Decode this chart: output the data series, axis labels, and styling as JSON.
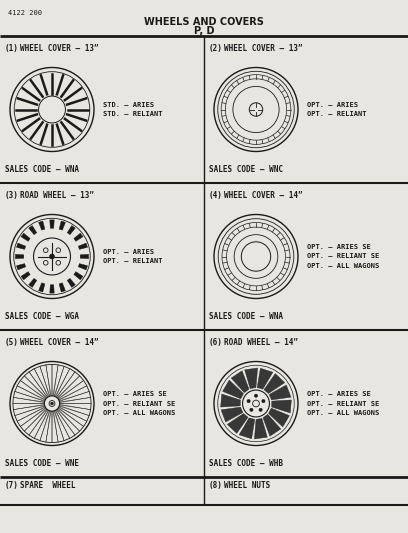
{
  "page_number": "4122 200",
  "title_line1": "WHEELS AND COVERS",
  "title_line2": "P, D",
  "bg_color": "#e8e6e0",
  "line_color": "#1a1a1a",
  "cells": [
    {
      "num": "(1)",
      "heading": "WHEEL COVER — 13”",
      "sales_code": "SALES CODE — WNA",
      "options": [
        "STD. — ARIES",
        "STD. — RELIANT"
      ],
      "wheel_type": "cover_spoked_13",
      "opt_lines": 2
    },
    {
      "num": "(2)",
      "heading": "WHEEL COVER — 13”",
      "sales_code": "SALES CODE — WNC",
      "options": [
        "OPT. — ARIES",
        "OPT. — RELIANT"
      ],
      "wheel_type": "cover_smooth_13",
      "opt_lines": 2
    },
    {
      "num": "(3)",
      "heading": "ROAD WHEEL — 13”",
      "sales_code": "SALES CODE — WGA",
      "options": [
        "OPT. — ARIES",
        "OPT. — RELIANT"
      ],
      "wheel_type": "road_wheel_13",
      "opt_lines": 2
    },
    {
      "num": "(4)",
      "heading": "WHEEL COVER — 14”",
      "sales_code": "SALES CODE — WNA",
      "options": [
        "OPT. — ARIES SE",
        "OPT. — RELIANT SE",
        "OPT. — ALL WAGONS"
      ],
      "wheel_type": "cover_14",
      "opt_lines": 3
    },
    {
      "num": "(5)",
      "heading": "WHEEL COVER — 14”",
      "sales_code": "SALES CODE — WNE",
      "options": [
        "OPT. — ARIES SE",
        "OPT. — RELIANT SE",
        "OPT. — ALL WAGONS"
      ],
      "wheel_type": "cover_wire_14",
      "opt_lines": 3
    },
    {
      "num": "(6)",
      "heading": "ROAD WHEEL — 14”",
      "sales_code": "SALES CODE — WHB",
      "options": [
        "OPT. — ARIES SE",
        "OPT. — RELIANT SE",
        "OPT. — ALL WAGONS"
      ],
      "wheel_type": "road_wheel_14",
      "opt_lines": 3
    },
    {
      "num": "(7)",
      "heading": "SPARE  WHEEL",
      "sales_code": "",
      "options": [],
      "wheel_type": "none",
      "opt_lines": 0
    },
    {
      "num": "(8)",
      "heading": "WHEEL NUTS",
      "sales_code": "",
      "options": [],
      "wheel_type": "none",
      "opt_lines": 0
    }
  ]
}
